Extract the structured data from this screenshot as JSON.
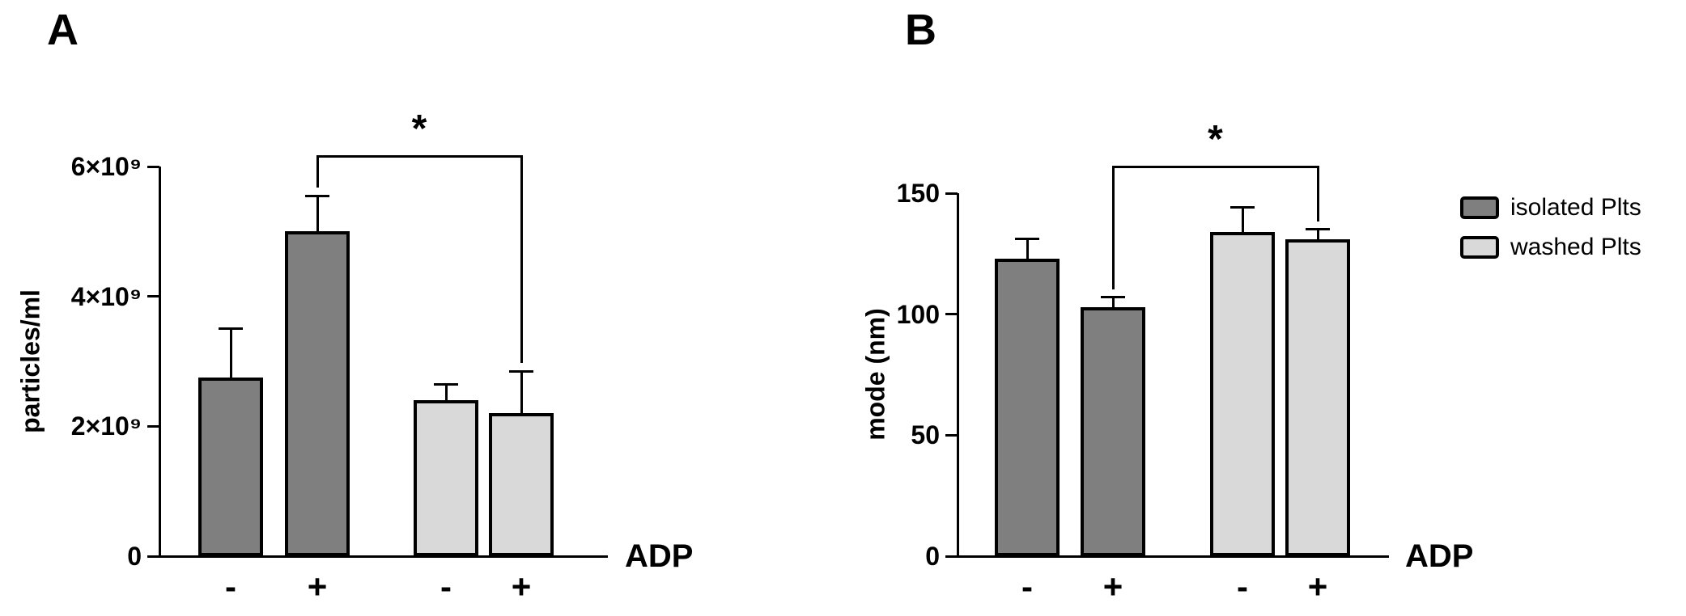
{
  "figure": {
    "background": "#ffffff"
  },
  "legend": {
    "items": [
      {
        "label": "isolated Plts",
        "color": "#7f7f7f"
      },
      {
        "label": "washed Plts",
        "color": "#d9d9d9"
      }
    ]
  },
  "chart_data": [
    {
      "type": "bar",
      "panel": "A",
      "title": "",
      "ylabel": "particles/ml",
      "xlabel": "ADP",
      "categories": [
        "-",
        "+",
        "-",
        "+"
      ],
      "series_of_bars": [
        "isolated Plts",
        "isolated Plts",
        "washed Plts",
        "washed Plts"
      ],
      "values": [
        2750000000.0,
        5000000000.0,
        2400000000.0,
        2200000000.0
      ],
      "errors": [
        750000000.0,
        550000000.0,
        250000000.0,
        650000000.0
      ],
      "bar_colors": [
        "#7f7f7f",
        "#7f7f7f",
        "#d9d9d9",
        "#d9d9d9"
      ],
      "ylim": [
        0,
        6000000000.0
      ],
      "yticks": [
        {
          "value": 0,
          "label": "0"
        },
        {
          "value": 2000000000.0,
          "label": "2×10⁹"
        },
        {
          "value": 4000000000.0,
          "label": "4×10⁹"
        },
        {
          "value": 6000000000.0,
          "label": "6×10⁹"
        }
      ],
      "grid": false,
      "significance": {
        "from": 1,
        "to": 3,
        "label": "*"
      }
    },
    {
      "type": "bar",
      "panel": "B",
      "title": "",
      "ylabel": "mode (nm)",
      "xlabel": "ADP",
      "categories": [
        "-",
        "+",
        "-",
        "+"
      ],
      "series_of_bars": [
        "isolated Plts",
        "isolated Plts",
        "washed Plts",
        "washed Plts"
      ],
      "values": [
        123,
        103,
        134,
        131
      ],
      "errors": [
        8,
        4,
        10,
        4
      ],
      "bar_colors": [
        "#7f7f7f",
        "#7f7f7f",
        "#d9d9d9",
        "#d9d9d9"
      ],
      "ylim": [
        0,
        150
      ],
      "yticks": [
        {
          "value": 0,
          "label": "0"
        },
        {
          "value": 50,
          "label": "50"
        },
        {
          "value": 100,
          "label": "100"
        },
        {
          "value": 150,
          "label": "150"
        }
      ],
      "grid": false,
      "significance": {
        "from": 1,
        "to": 3,
        "label": "*"
      }
    }
  ]
}
